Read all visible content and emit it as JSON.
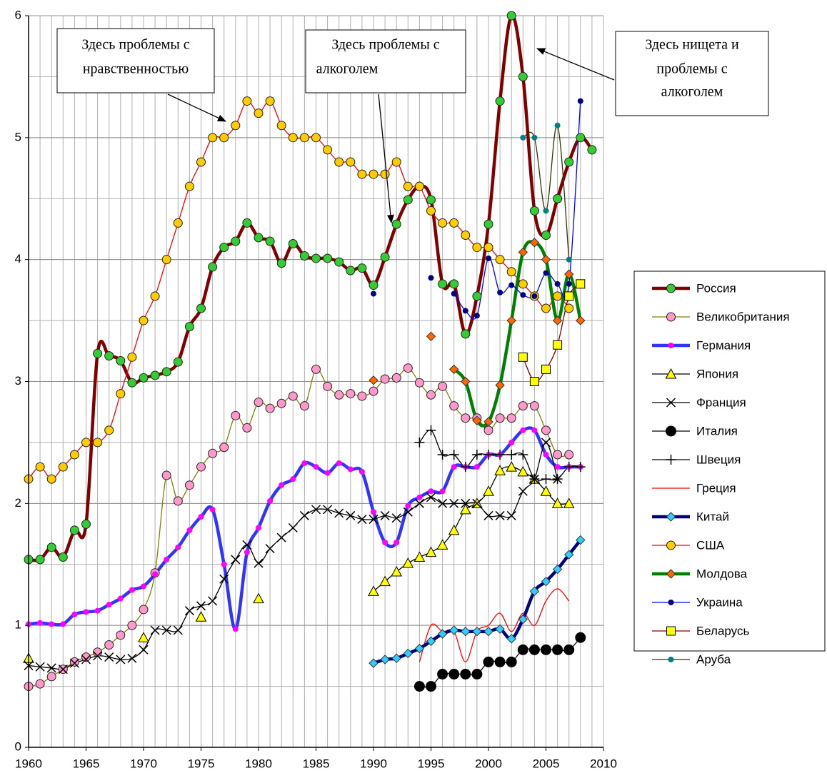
{
  "chart_data": {
    "type": "line",
    "xlim": [
      1960,
      2010
    ],
    "ylim": [
      0,
      6
    ],
    "xticks": [
      1960,
      1965,
      1970,
      1975,
      1980,
      1985,
      1990,
      1995,
      2000,
      2005,
      2010
    ],
    "yticks": [
      0,
      1,
      2,
      3,
      4,
      5,
      6
    ],
    "grid": true,
    "minor_grid": {
      "x": 1,
      "y": 0.5
    },
    "smooth": true,
    "legend": "right",
    "annotations": [
      {
        "lines": [
          "Здесь проблемы с",
          "нравственностью"
        ]
      },
      {
        "lines": [
          "Здесь проблемы с",
          "алкоголем"
        ]
      },
      {
        "lines": [
          "Здесь нищета и",
          "проблемы с",
          "алкоголем"
        ]
      }
    ],
    "x": [
      1960,
      1961,
      1962,
      1963,
      1964,
      1965,
      1966,
      1967,
      1968,
      1969,
      1970,
      1971,
      1972,
      1973,
      1974,
      1975,
      1976,
      1977,
      1978,
      1979,
      1980,
      1981,
      1982,
      1983,
      1984,
      1985,
      1986,
      1987,
      1988,
      1989,
      1990,
      1991,
      1992,
      1993,
      1994,
      1995,
      1996,
      1997,
      1998,
      1999,
      2000,
      2001,
      2002,
      2003,
      2004,
      2005,
      2006,
      2007,
      2008,
      2009
    ],
    "series": [
      {
        "name": "Россия",
        "color": "#800000",
        "thick": true,
        "marker": "circle",
        "marker_color": "#33cc33",
        "values": [
          1.54,
          1.54,
          1.64,
          1.56,
          1.78,
          1.83,
          3.23,
          3.21,
          3.17,
          2.99,
          3.03,
          3.05,
          3.08,
          3.16,
          3.45,
          3.6,
          3.94,
          4.1,
          4.15,
          4.3,
          4.18,
          4.15,
          3.97,
          4.13,
          4.03,
          4.01,
          4.01,
          3.98,
          3.91,
          3.93,
          3.79,
          4.02,
          4.29,
          4.49,
          4.6,
          4.49,
          3.8,
          3.8,
          3.39,
          3.7,
          4.29,
          5.3,
          6.0,
          5.5,
          4.4,
          4.2,
          4.5,
          4.8,
          5.0,
          4.9
        ]
      },
      {
        "name": "Великобритания",
        "color": "#808000",
        "thick": false,
        "marker": "circle",
        "marker_color": "#ff99cc",
        "values": [
          0.5,
          0.52,
          0.58,
          0.64,
          0.7,
          0.74,
          0.78,
          0.84,
          0.92,
          1.0,
          1.13,
          1.43,
          2.23,
          2.02,
          2.15,
          2.3,
          2.41,
          2.46,
          2.72,
          2.62,
          2.83,
          2.78,
          2.82,
          2.88,
          2.8,
          3.1,
          2.96,
          2.89,
          2.9,
          2.88,
          2.92,
          3.02,
          3.03,
          3.11,
          2.99,
          2.89,
          2.96,
          2.8,
          2.7,
          2.7,
          2.6,
          2.7,
          2.7,
          2.8,
          2.8,
          2.6,
          2.4,
          2.4,
          null,
          null
        ]
      },
      {
        "name": "Германия",
        "color": "#3333ff",
        "thick": true,
        "marker": "dot",
        "marker_color": "#ff00ff",
        "values": [
          1.01,
          1.02,
          1.01,
          1.01,
          1.09,
          1.11,
          1.12,
          1.17,
          1.22,
          1.29,
          1.32,
          1.42,
          1.54,
          1.64,
          1.78,
          1.89,
          1.95,
          1.5,
          0.97,
          1.6,
          1.8,
          2.02,
          2.15,
          2.2,
          2.33,
          2.3,
          2.25,
          2.33,
          2.28,
          2.26,
          1.93,
          1.68,
          1.68,
          1.98,
          2.05,
          2.1,
          2.1,
          2.3,
          2.3,
          2.3,
          2.4,
          2.4,
          2.5,
          2.6,
          2.6,
          2.4,
          2.3,
          2.3,
          2.3,
          null
        ]
      },
      {
        "name": "Япония",
        "color": "#000000",
        "thick": false,
        "marker": "triangle",
        "marker_color": "#ffff00",
        "values": [
          0.73,
          null,
          null,
          null,
          null,
          null,
          null,
          null,
          null,
          null,
          0.9,
          null,
          null,
          null,
          null,
          1.07,
          null,
          null,
          null,
          null,
          1.22,
          null,
          null,
          null,
          null,
          null,
          null,
          null,
          null,
          null,
          1.28,
          1.36,
          1.44,
          1.51,
          1.56,
          1.6,
          1.66,
          1.78,
          1.95,
          2.0,
          2.1,
          2.27,
          2.3,
          2.26,
          2.2,
          2.1,
          2.0,
          2.0,
          null,
          null
        ]
      },
      {
        "name": "Франция",
        "color": "#000000",
        "thick": false,
        "marker": "x",
        "marker_color": "#000000",
        "values": [
          0.67,
          0.66,
          0.65,
          0.64,
          0.69,
          0.72,
          0.75,
          0.74,
          0.72,
          0.73,
          0.8,
          0.96,
          0.96,
          0.96,
          1.12,
          1.16,
          1.2,
          1.38,
          1.54,
          1.66,
          1.51,
          1.63,
          1.72,
          1.8,
          1.9,
          1.95,
          1.95,
          1.92,
          1.9,
          1.87,
          1.87,
          1.9,
          1.88,
          1.93,
          2.0,
          2.05,
          2.0,
          2.0,
          2.0,
          2.0,
          1.9,
          1.9,
          1.9,
          2.1,
          2.2,
          2.5,
          2.2,
          null,
          null,
          null
        ]
      },
      {
        "name": "Италия",
        "color": "#000000",
        "thick": false,
        "marker": "bigcircle",
        "marker_color": "#000000",
        "values": [
          null,
          null,
          null,
          null,
          null,
          null,
          null,
          null,
          null,
          null,
          null,
          null,
          null,
          null,
          null,
          null,
          null,
          null,
          null,
          null,
          null,
          null,
          null,
          null,
          null,
          null,
          null,
          null,
          null,
          null,
          null,
          null,
          null,
          null,
          0.5,
          0.5,
          0.6,
          0.6,
          0.6,
          0.6,
          0.7,
          0.7,
          0.7,
          0.8,
          0.8,
          0.8,
          0.8,
          0.8,
          0.9,
          null
        ]
      },
      {
        "name": "Швеция",
        "color": "#000000",
        "thick": false,
        "marker": "plus",
        "marker_color": "#000000",
        "values": [
          null,
          null,
          null,
          null,
          null,
          null,
          null,
          null,
          null,
          null,
          null,
          null,
          null,
          null,
          null,
          null,
          null,
          null,
          null,
          null,
          null,
          null,
          null,
          null,
          null,
          null,
          null,
          null,
          null,
          null,
          null,
          null,
          null,
          null,
          2.5,
          2.6,
          2.4,
          2.4,
          2.3,
          2.4,
          2.4,
          2.4,
          2.4,
          2.4,
          2.2,
          2.2,
          2.2,
          2.3,
          2.3,
          null
        ]
      },
      {
        "name": "Греция",
        "color": "#ff0000",
        "thick": false,
        "marker": "none",
        "marker_color": "#ff0000",
        "values": [
          null,
          null,
          null,
          null,
          null,
          null,
          null,
          null,
          null,
          null,
          null,
          null,
          null,
          null,
          null,
          null,
          null,
          null,
          null,
          null,
          null,
          null,
          null,
          null,
          null,
          null,
          null,
          null,
          null,
          null,
          null,
          null,
          null,
          null,
          0.7,
          1.0,
          0.95,
          0.95,
          0.7,
          0.95,
          1.0,
          1.1,
          0.95,
          1.1,
          1.0,
          1.2,
          1.3,
          1.2,
          null,
          null
        ]
      },
      {
        "name": "Китай",
        "color": "#000080",
        "thick": true,
        "marker": "diamond",
        "marker_color": "#33ccff",
        "values": [
          null,
          null,
          null,
          null,
          null,
          null,
          null,
          null,
          null,
          null,
          null,
          null,
          null,
          null,
          null,
          null,
          null,
          null,
          null,
          null,
          null,
          null,
          null,
          null,
          null,
          null,
          null,
          null,
          null,
          null,
          0.69,
          0.72,
          0.73,
          0.77,
          0.81,
          0.87,
          0.93,
          0.96,
          0.95,
          0.95,
          0.95,
          0.97,
          0.89,
          1.05,
          1.28,
          1.36,
          1.46,
          1.58,
          1.7,
          null
        ]
      },
      {
        "name": "США",
        "color": "#ff0000",
        "thick": false,
        "marker": "circle",
        "marker_color": "#ffcc00",
        "values": [
          2.2,
          2.3,
          2.2,
          2.3,
          2.4,
          2.5,
          2.5,
          2.6,
          2.9,
          3.2,
          3.5,
          3.7,
          4.0,
          4.3,
          4.6,
          4.8,
          5.0,
          5.0,
          5.1,
          5.3,
          5.2,
          5.3,
          5.1,
          5.0,
          5.0,
          5.0,
          4.9,
          4.8,
          4.8,
          4.7,
          4.7,
          4.7,
          4.8,
          4.6,
          4.6,
          4.4,
          4.3,
          4.3,
          4.2,
          4.1,
          4.1,
          4.0,
          3.9,
          3.8,
          3.7,
          3.6,
          3.7,
          3.6,
          null,
          null
        ]
      },
      {
        "name": "Молдова",
        "color": "#008000",
        "thick": true,
        "marker": "diamond",
        "marker_color": "#ff6600",
        "values": [
          null,
          null,
          null,
          null,
          null,
          null,
          null,
          null,
          null,
          null,
          null,
          null,
          null,
          null,
          null,
          null,
          null,
          null,
          null,
          null,
          null,
          null,
          null,
          null,
          null,
          null,
          null,
          null,
          null,
          null,
          3.01,
          null,
          null,
          null,
          null,
          3.37,
          null,
          3.1,
          3.0,
          2.68,
          2.67,
          2.97,
          3.5,
          4.06,
          4.14,
          4.0,
          3.5,
          3.88,
          3.5,
          null
        ]
      },
      {
        "name": "Украина",
        "color": "#0000ff",
        "thick": false,
        "marker": "dot",
        "marker_color": "#000080",
        "values": [
          null,
          null,
          null,
          null,
          null,
          null,
          null,
          null,
          null,
          null,
          null,
          null,
          null,
          null,
          null,
          null,
          null,
          null,
          null,
          null,
          null,
          null,
          null,
          null,
          null,
          null,
          null,
          null,
          null,
          null,
          3.72,
          null,
          null,
          null,
          null,
          3.85,
          null,
          3.72,
          3.58,
          3.54,
          4.01,
          3.73,
          3.79,
          3.71,
          3.7,
          3.89,
          3.8,
          3.8,
          5.3,
          null
        ]
      },
      {
        "name": "Беларусь",
        "color": "#800000",
        "thick": false,
        "marker": "square",
        "marker_color": "#ffff00",
        "values": [
          null,
          null,
          null,
          null,
          null,
          null,
          null,
          null,
          null,
          null,
          null,
          null,
          null,
          null,
          null,
          null,
          null,
          null,
          null,
          null,
          null,
          null,
          null,
          null,
          null,
          null,
          null,
          null,
          null,
          null,
          null,
          null,
          null,
          null,
          null,
          null,
          null,
          null,
          null,
          null,
          null,
          null,
          null,
          3.2,
          3.0,
          3.1,
          3.3,
          3.7,
          3.8,
          null
        ]
      },
      {
        "name": "Аруба",
        "color": "#333300",
        "thick": false,
        "marker": "dot",
        "marker_color": "#008080",
        "values": [
          null,
          null,
          null,
          null,
          null,
          null,
          null,
          null,
          null,
          null,
          null,
          null,
          null,
          null,
          null,
          null,
          null,
          null,
          null,
          null,
          null,
          null,
          null,
          null,
          null,
          null,
          null,
          null,
          null,
          null,
          null,
          null,
          null,
          null,
          null,
          null,
          null,
          null,
          null,
          null,
          null,
          null,
          null,
          5.0,
          5.0,
          4.4,
          5.1,
          4.0,
          null,
          null
        ]
      }
    ]
  }
}
